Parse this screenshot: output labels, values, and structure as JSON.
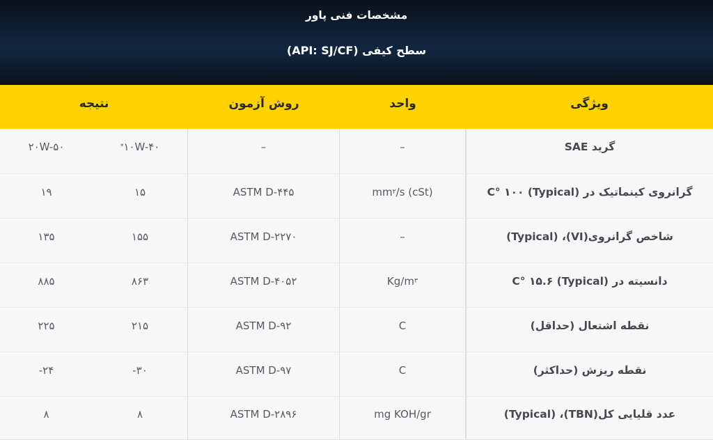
{
  "header": {
    "title": "مشخصات فنی پاور",
    "subtitle": "سطح کیفی (API: SJ/CF)"
  },
  "theme": {
    "accent_yellow": "#ffd200",
    "header_navy_top": "#0a111c",
    "header_navy_mid": "#112740",
    "row_background": "#f7f7f9"
  },
  "table": {
    "columns": {
      "feature": "ویژگی",
      "unit": "واحد",
      "method": "روش آزمون",
      "result": "نتیجه"
    },
    "rows": [
      {
        "feature": "گرید SAE",
        "unit": "–",
        "method": "–",
        "result_a": "^{*}۱۰W-۴۰",
        "result_b": "۲۰W-۵۰"
      },
      {
        "feature": "گرانروی کینماتیک در C° ۱۰۰ (Typical)",
        "unit": "mm^{۲}/s (cSt)",
        "method": "ASTM D-۴۴۵",
        "result_a": "۱۵",
        "result_b": "۱۹"
      },
      {
        "feature": "شاخص گرانروی(VI)،‏ (Typical)",
        "unit": "–",
        "method": "ASTM D-۲۲۷۰",
        "result_a": "۱۵۵",
        "result_b": "۱۳۵"
      },
      {
        "feature": "دانسیته در C° ۱۵.۶ (Typical)",
        "unit": "Kg/m^{۳}",
        "method": "ASTM D-۴۰۵۲",
        "result_a": "۸۶۳",
        "result_b": "۸۸۵"
      },
      {
        "feature": "نقطه اشتعال (حداقل)",
        "unit": "C",
        "method": "ASTM D-۹۲",
        "result_a": "۲۱۵",
        "result_b": "۲۲۵"
      },
      {
        "feature": "نقطه ریزش (حداکثر)",
        "unit": "C",
        "method": "ASTM D-۹۷",
        "result_a": "-۳۰",
        "result_b": "-۲۴"
      },
      {
        "feature": "عدد قلیایی کل(TBN)،‏ (Typical)",
        "unit": "mg KOH/gr",
        "method": "ASTM D-۲۸۹۶",
        "result_a": "۸",
        "result_b": "۸"
      }
    ]
  }
}
